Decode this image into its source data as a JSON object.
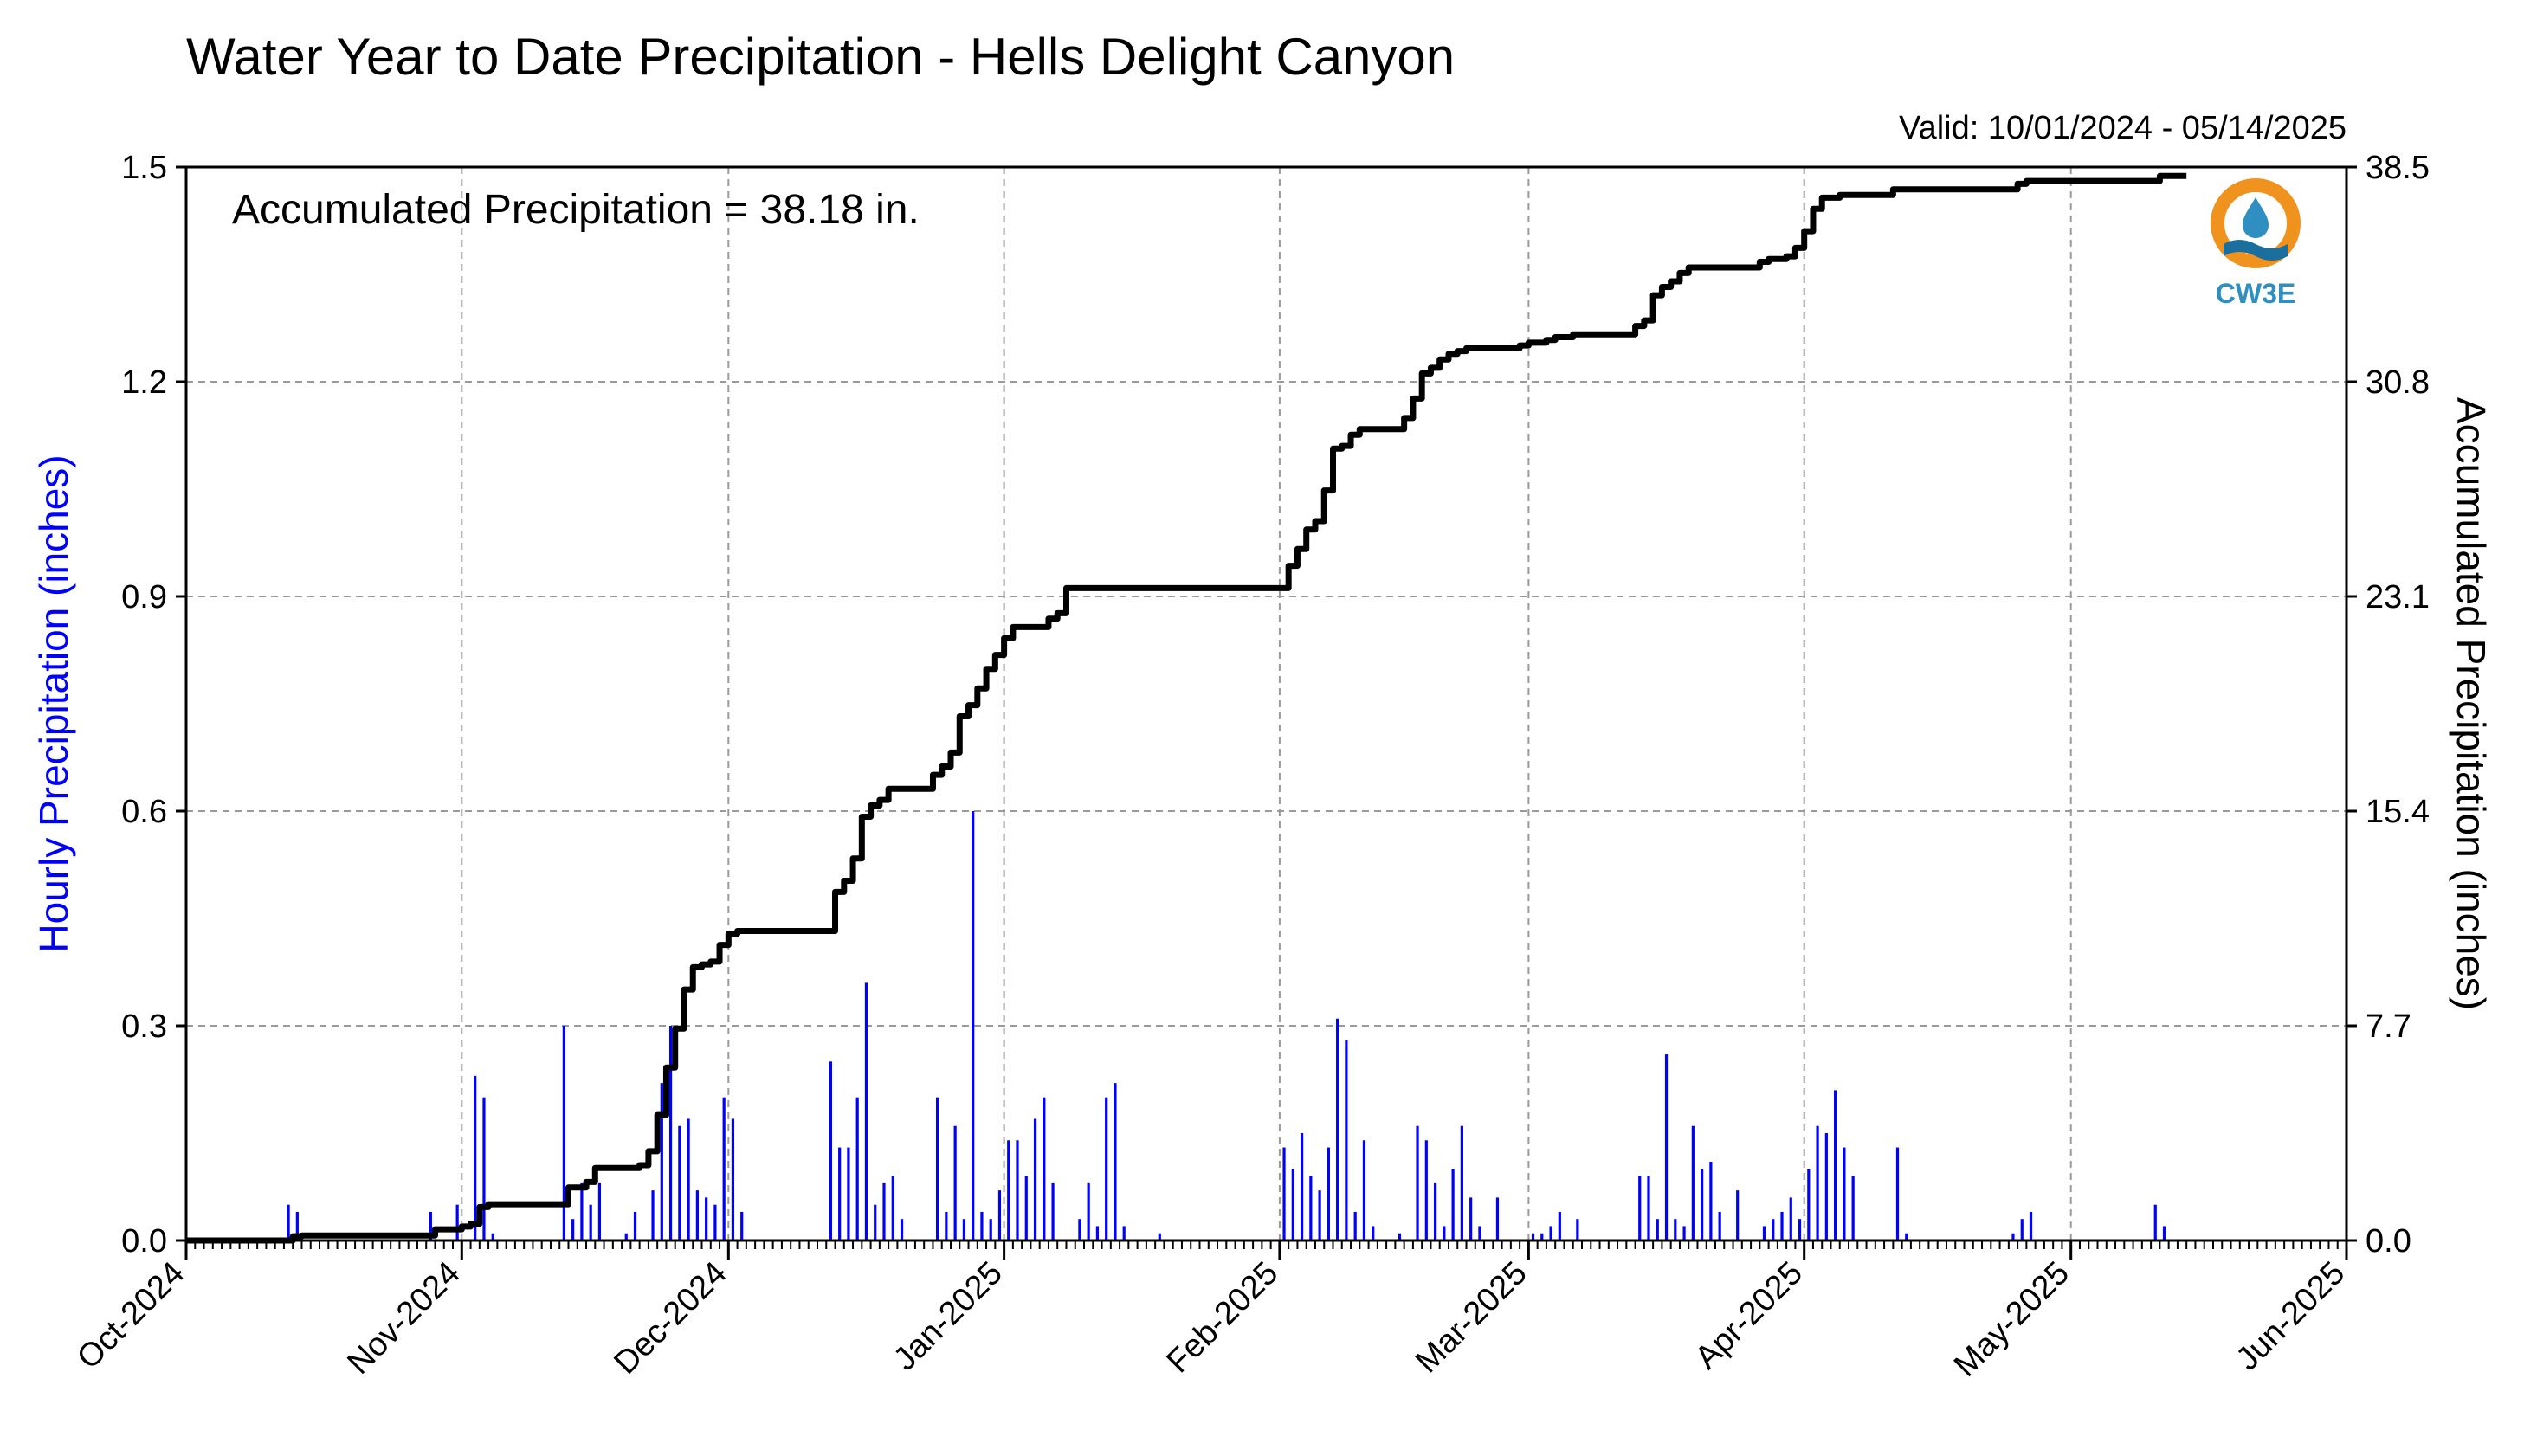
{
  "chart_data": {
    "type": "bar+line",
    "title": "Water Year to Date Precipitation - Hells Delight Canyon",
    "valid_text": "Valid: 10/01/2024 - 05/14/2025",
    "annotation": "Accumulated Precipitation = 38.18 in.",
    "left_axis": {
      "label": "Hourly Precipitation (inches)",
      "range": [
        0,
        1.5
      ],
      "ticks": [
        "0.0",
        "0.3",
        "0.6",
        "0.9",
        "1.2",
        "1.5"
      ],
      "color": "#0000ff"
    },
    "right_axis": {
      "label": "Accumulated Precipitation (inches)",
      "range": [
        0,
        38.5
      ],
      "ticks": [
        "0.0",
        "7.7",
        "15.4",
        "23.1",
        "30.8",
        "38.5"
      ]
    },
    "x_axis": {
      "range": [
        "2024-10-01",
        "2025-06-01"
      ],
      "tick_labels": [
        "Oct-2024",
        "Nov-2024",
        "Dec-2024",
        "Jan-2025",
        "Feb-2025",
        "Mar-2025",
        "Apr-2025",
        "May-2025",
        "Jun-2025"
      ]
    },
    "grid": true,
    "hourly_series": {
      "name": "Hourly Precipitation",
      "color": "#0000ff",
      "points": [
        [
          "2024-10-12",
          0.05
        ],
        [
          "2024-10-13",
          0.04
        ],
        [
          "2024-10-28",
          0.04
        ],
        [
          "2024-10-31",
          0.05
        ],
        [
          "2024-11-02",
          0.23
        ],
        [
          "2024-11-03",
          0.2
        ],
        [
          "2024-11-04",
          0.01
        ],
        [
          "2024-11-12",
          0.3
        ],
        [
          "2024-11-13",
          0.03
        ],
        [
          "2024-11-14",
          0.08
        ],
        [
          "2024-11-15",
          0.05
        ],
        [
          "2024-11-16",
          0.08
        ],
        [
          "2024-11-19",
          0.01
        ],
        [
          "2024-11-20",
          0.04
        ],
        [
          "2024-11-22",
          0.07
        ],
        [
          "2024-11-23",
          0.22
        ],
        [
          "2024-11-24",
          0.3
        ],
        [
          "2024-11-25",
          0.16
        ],
        [
          "2024-11-26",
          0.17
        ],
        [
          "2024-11-27",
          0.07
        ],
        [
          "2024-11-28",
          0.06
        ],
        [
          "2024-11-29",
          0.05
        ],
        [
          "2024-11-30",
          0.2
        ],
        [
          "2024-12-01",
          0.17
        ],
        [
          "2024-12-02",
          0.04
        ],
        [
          "2024-12-12",
          0.25
        ],
        [
          "2024-12-13",
          0.13
        ],
        [
          "2024-12-14",
          0.13
        ],
        [
          "2024-12-15",
          0.2
        ],
        [
          "2024-12-16",
          0.36
        ],
        [
          "2024-12-17",
          0.05
        ],
        [
          "2024-12-18",
          0.08
        ],
        [
          "2024-12-19",
          0.09
        ],
        [
          "2024-12-20",
          0.03
        ],
        [
          "2024-12-24",
          0.2
        ],
        [
          "2024-12-25",
          0.04
        ],
        [
          "2024-12-26",
          0.16
        ],
        [
          "2024-12-27",
          0.03
        ],
        [
          "2024-12-28",
          0.6
        ],
        [
          "2024-12-29",
          0.04
        ],
        [
          "2024-12-30",
          0.03
        ],
        [
          "2024-12-31",
          0.07
        ],
        [
          "2025-01-01",
          0.14
        ],
        [
          "2025-01-02",
          0.14
        ],
        [
          "2025-01-03",
          0.09
        ],
        [
          "2025-01-04",
          0.17
        ],
        [
          "2025-01-05",
          0.2
        ],
        [
          "2025-01-06",
          0.08
        ],
        [
          "2025-01-09",
          0.03
        ],
        [
          "2025-01-10",
          0.08
        ],
        [
          "2025-01-11",
          0.02
        ],
        [
          "2025-01-12",
          0.2
        ],
        [
          "2025-01-13",
          0.22
        ],
        [
          "2025-01-14",
          0.02
        ],
        [
          "2025-01-18",
          0.01
        ],
        [
          "2025-02-01",
          0.13
        ],
        [
          "2025-02-02",
          0.1
        ],
        [
          "2025-02-03",
          0.15
        ],
        [
          "2025-02-04",
          0.09
        ],
        [
          "2025-02-05",
          0.07
        ],
        [
          "2025-02-06",
          0.13
        ],
        [
          "2025-02-07",
          0.31
        ],
        [
          "2025-02-08",
          0.28
        ],
        [
          "2025-02-09",
          0.04
        ],
        [
          "2025-02-10",
          0.14
        ],
        [
          "2025-02-11",
          0.02
        ],
        [
          "2025-02-14",
          0.01
        ],
        [
          "2025-02-16",
          0.16
        ],
        [
          "2025-02-17",
          0.14
        ],
        [
          "2025-02-18",
          0.08
        ],
        [
          "2025-02-19",
          0.02
        ],
        [
          "2025-02-20",
          0.1
        ],
        [
          "2025-02-21",
          0.16
        ],
        [
          "2025-02-22",
          0.06
        ],
        [
          "2025-02-23",
          0.02
        ],
        [
          "2025-02-25",
          0.06
        ],
        [
          "2025-03-01",
          0.01
        ],
        [
          "2025-03-02",
          0.01
        ],
        [
          "2025-03-03",
          0.02
        ],
        [
          "2025-03-04",
          0.04
        ],
        [
          "2025-03-06",
          0.03
        ],
        [
          "2025-03-13",
          0.09
        ],
        [
          "2025-03-14",
          0.09
        ],
        [
          "2025-03-15",
          0.03
        ],
        [
          "2025-03-16",
          0.26
        ],
        [
          "2025-03-17",
          0.03
        ],
        [
          "2025-03-18",
          0.02
        ],
        [
          "2025-03-19",
          0.16
        ],
        [
          "2025-03-20",
          0.1
        ],
        [
          "2025-03-21",
          0.11
        ],
        [
          "2025-03-22",
          0.04
        ],
        [
          "2025-03-24",
          0.07
        ],
        [
          "2025-03-27",
          0.02
        ],
        [
          "2025-03-28",
          0.03
        ],
        [
          "2025-03-29",
          0.04
        ],
        [
          "2025-03-30",
          0.06
        ],
        [
          "2025-03-31",
          0.03
        ],
        [
          "2025-04-01",
          0.1
        ],
        [
          "2025-04-02",
          0.16
        ],
        [
          "2025-04-03",
          0.15
        ],
        [
          "2025-04-04",
          0.21
        ],
        [
          "2025-04-05",
          0.13
        ],
        [
          "2025-04-06",
          0.09
        ],
        [
          "2025-04-11",
          0.13
        ],
        [
          "2025-04-12",
          0.01
        ],
        [
          "2025-04-24",
          0.01
        ],
        [
          "2025-04-25",
          0.03
        ],
        [
          "2025-04-26",
          0.04
        ],
        [
          "2025-05-10",
          0.05
        ],
        [
          "2025-05-11",
          0.02
        ]
      ]
    },
    "accumulated_series": {
      "name": "Accumulated Precipitation",
      "color": "#000000",
      "points": [
        [
          "2024-10-01",
          0.0
        ],
        [
          "2024-10-12",
          0.0
        ],
        [
          "2024-10-13",
          0.15
        ],
        [
          "2024-10-14",
          0.18
        ],
        [
          "2024-10-28",
          0.18
        ],
        [
          "2024-10-29",
          0.4
        ],
        [
          "2024-11-01",
          0.5
        ],
        [
          "2024-11-02",
          0.6
        ],
        [
          "2024-11-03",
          1.2
        ],
        [
          "2024-11-04",
          1.3
        ],
        [
          "2024-11-12",
          1.3
        ],
        [
          "2024-11-13",
          1.9
        ],
        [
          "2024-11-15",
          2.1
        ],
        [
          "2024-11-16",
          2.6
        ],
        [
          "2024-11-20",
          2.6
        ],
        [
          "2024-11-21",
          2.7
        ],
        [
          "2024-11-22",
          3.2
        ],
        [
          "2024-11-23",
          4.5
        ],
        [
          "2024-11-24",
          6.2
        ],
        [
          "2024-11-25",
          7.6
        ],
        [
          "2024-11-26",
          9.0
        ],
        [
          "2024-11-27",
          9.8
        ],
        [
          "2024-11-28",
          9.9
        ],
        [
          "2024-11-29",
          10.0
        ],
        [
          "2024-11-30",
          10.6
        ],
        [
          "2024-12-01",
          11.0
        ],
        [
          "2024-12-02",
          11.1
        ],
        [
          "2024-12-12",
          11.1
        ],
        [
          "2024-12-13",
          12.5
        ],
        [
          "2024-12-14",
          12.9
        ],
        [
          "2024-12-15",
          13.7
        ],
        [
          "2024-12-16",
          15.2
        ],
        [
          "2024-12-17",
          15.6
        ],
        [
          "2024-12-18",
          15.8
        ],
        [
          "2024-12-19",
          16.2
        ],
        [
          "2024-12-23",
          16.2
        ],
        [
          "2024-12-24",
          16.7
        ],
        [
          "2024-12-25",
          17.0
        ],
        [
          "2024-12-26",
          17.5
        ],
        [
          "2024-12-27",
          18.8
        ],
        [
          "2024-12-28",
          19.2
        ],
        [
          "2024-12-29",
          19.8
        ],
        [
          "2024-12-30",
          20.5
        ],
        [
          "2024-12-31",
          21.0
        ],
        [
          "2025-01-01",
          21.6
        ],
        [
          "2025-01-02",
          22.0
        ],
        [
          "2025-01-05",
          22.0
        ],
        [
          "2025-01-06",
          22.3
        ],
        [
          "2025-01-07",
          22.5
        ],
        [
          "2025-01-08",
          23.4
        ],
        [
          "2025-02-01",
          23.4
        ],
        [
          "2025-02-02",
          24.2
        ],
        [
          "2025-02-03",
          24.8
        ],
        [
          "2025-02-04",
          25.5
        ],
        [
          "2025-02-05",
          25.8
        ],
        [
          "2025-02-06",
          26.9
        ],
        [
          "2025-02-07",
          28.4
        ],
        [
          "2025-02-08",
          28.5
        ],
        [
          "2025-02-09",
          28.9
        ],
        [
          "2025-02-10",
          29.1
        ],
        [
          "2025-02-14",
          29.1
        ],
        [
          "2025-02-15",
          29.5
        ],
        [
          "2025-02-16",
          30.2
        ],
        [
          "2025-02-17",
          31.1
        ],
        [
          "2025-02-18",
          31.3
        ],
        [
          "2025-02-19",
          31.6
        ],
        [
          "2025-02-20",
          31.8
        ],
        [
          "2025-02-21",
          31.9
        ],
        [
          "2025-02-22",
          32.0
        ],
        [
          "2025-02-28",
          32.1
        ],
        [
          "2025-03-01",
          32.2
        ],
        [
          "2025-03-03",
          32.3
        ],
        [
          "2025-03-04",
          32.4
        ],
        [
          "2025-03-06",
          32.5
        ],
        [
          "2025-03-12",
          32.5
        ],
        [
          "2025-03-13",
          32.8
        ],
        [
          "2025-03-14",
          33.0
        ],
        [
          "2025-03-15",
          33.9
        ],
        [
          "2025-03-16",
          34.2
        ],
        [
          "2025-03-17",
          34.4
        ],
        [
          "2025-03-18",
          34.7
        ],
        [
          "2025-03-19",
          34.9
        ],
        [
          "2025-03-26",
          34.9
        ],
        [
          "2025-03-27",
          35.1
        ],
        [
          "2025-03-28",
          35.2
        ],
        [
          "2025-03-30",
          35.3
        ],
        [
          "2025-03-31",
          35.6
        ],
        [
          "2025-04-01",
          36.2
        ],
        [
          "2025-04-02",
          37.0
        ],
        [
          "2025-04-03",
          37.4
        ],
        [
          "2025-04-05",
          37.5
        ],
        [
          "2025-04-10",
          37.5
        ],
        [
          "2025-04-11",
          37.7
        ],
        [
          "2025-04-12",
          37.7
        ],
        [
          "2025-04-24",
          37.7
        ],
        [
          "2025-04-25",
          37.9
        ],
        [
          "2025-04-26",
          38.0
        ],
        [
          "2025-05-10",
          38.0
        ],
        [
          "2025-05-11",
          38.18
        ],
        [
          "2025-05-14",
          38.18
        ]
      ]
    }
  },
  "logo": {
    "text": "CW3E",
    "colors": {
      "orange": "#f0921e",
      "blue": "#2e8fc0",
      "dark_blue": "#1b6f9e"
    }
  }
}
